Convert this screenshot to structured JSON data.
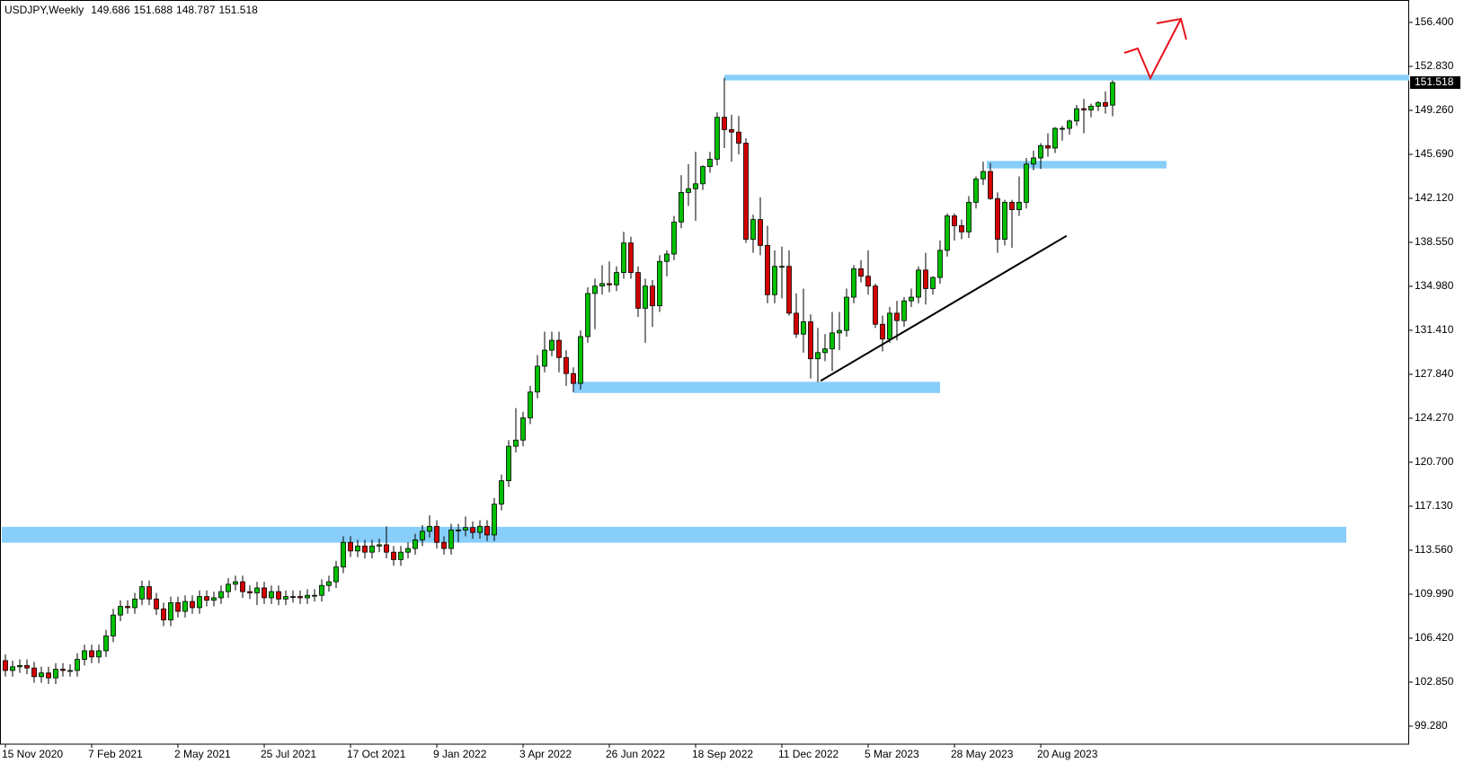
{
  "chart_data": {
    "type": "candlestick",
    "title": "USDJPY,Weekly",
    "up_color": "#00c000",
    "down_color": "#d40000",
    "zone_color": "#87cefa",
    "trend_color": "#000000",
    "categories": [
      "15 Nov 2020",
      null,
      null,
      null,
      null,
      null,
      null,
      null,
      null,
      null,
      null,
      null,
      "7 Feb 2021",
      null,
      null,
      null,
      null,
      null,
      null,
      null,
      null,
      null,
      null,
      null,
      "2 May 2021",
      null,
      null,
      null,
      null,
      null,
      null,
      null,
      null,
      null,
      null,
      null,
      "25 Jul 2021",
      null,
      null,
      null,
      null,
      null,
      null,
      null,
      null,
      null,
      null,
      null,
      "17 Oct 2021",
      null,
      null,
      null,
      null,
      null,
      null,
      null,
      null,
      null,
      null,
      null,
      "9 Jan 2022",
      null,
      null,
      null,
      null,
      null,
      null,
      null,
      null,
      null,
      null,
      null,
      "3 Apr 2022",
      null,
      null,
      null,
      null,
      null,
      null,
      null,
      null,
      null,
      null,
      null,
      "26 Jun 2022",
      null,
      null,
      null,
      null,
      null,
      null,
      null,
      null,
      null,
      null,
      null,
      "18 Sep 2022",
      null,
      null,
      null,
      null,
      null,
      null,
      null,
      null,
      null,
      null,
      null,
      "11 Dec 2022",
      null,
      null,
      null,
      null,
      null,
      null,
      null,
      null,
      null,
      null,
      null,
      "5 Mar 2023",
      null,
      null,
      null,
      null,
      null,
      null,
      null,
      null,
      null,
      null,
      null,
      "28 May 2023",
      null,
      null,
      null,
      null,
      null,
      null,
      null,
      null,
      null,
      null,
      null,
      "20 Aug 2023",
      null,
      null,
      null,
      null,
      null,
      null,
      null,
      null,
      null,
      null
    ],
    "open": [
      104.6,
      103.8,
      104.1,
      104.2,
      104.0,
      103.3,
      103.6,
      103.2,
      103.9,
      103.8,
      103.8,
      104.7,
      105.4,
      104.9,
      105.4,
      106.6,
      108.3,
      109.0,
      108.9,
      109.6,
      110.6,
      109.6,
      108.8,
      107.9,
      109.3,
      108.6,
      109.4,
      108.9,
      109.8,
      109.5,
      109.7,
      110.2,
      110.8,
      111.0,
      110.2,
      110.1,
      110.5,
      109.7,
      110.2,
      109.6,
      109.8,
      109.8,
      109.7,
      109.9,
      109.9,
      110.7,
      111.0,
      112.2,
      114.2,
      113.5,
      113.9,
      113.4,
      113.9,
      114.0,
      113.4,
      112.8,
      113.4,
      113.7,
      114.4,
      115.1,
      115.5,
      114.2,
      113.7,
      115.2,
      115.2,
      115.4,
      115.0,
      115.5,
      114.8,
      117.3,
      119.2,
      122.0,
      122.5,
      124.3,
      126.4,
      128.5,
      129.8,
      130.6,
      129.2,
      127.9,
      127.1,
      130.9,
      134.4,
      135.0,
      135.2,
      135.1,
      136.1,
      138.5,
      136.1,
      133.2,
      135.0,
      133.4,
      137.0,
      137.6,
      140.2,
      142.6,
      142.9,
      143.3,
      144.7,
      145.3,
      148.7,
      147.7,
      147.5,
      146.6,
      138.8,
      140.4,
      138.3,
      134.3,
      136.6,
      136.6,
      132.8,
      131.1,
      132.1,
      129.1,
      129.6,
      129.9,
      131.2,
      131.4,
      134.1,
      136.4,
      135.8,
      135.0,
      131.9,
      130.7,
      132.8,
      132.2,
      133.8,
      134.1,
      136.3,
      134.8,
      135.7,
      137.9,
      140.7,
      139.9,
      139.4,
      141.8,
      143.7,
      144.3,
      142.1,
      138.8,
      141.8,
      141.2,
      141.8,
      144.9,
      145.4,
      146.4,
      146.2,
      147.8,
      147.8,
      148.4,
      149.4,
      149.3,
      149.6,
      149.9,
      149.686
    ],
    "high": [
      105.1,
      104.6,
      104.7,
      104.7,
      104.5,
      104.1,
      104.1,
      104.4,
      104.4,
      104.3,
      105.2,
      105.9,
      105.9,
      105.9,
      107.1,
      108.8,
      109.5,
      109.5,
      110.1,
      111.1,
      111.1,
      110.1,
      109.3,
      109.8,
      109.8,
      109.9,
      109.9,
      110.3,
      110.3,
      110.2,
      110.7,
      111.3,
      111.5,
      111.5,
      110.7,
      111.0,
      111.0,
      110.7,
      110.7,
      110.3,
      110.3,
      110.3,
      110.4,
      110.4,
      111.2,
      111.5,
      112.7,
      114.7,
      114.7,
      114.4,
      114.4,
      114.4,
      114.5,
      115.5,
      113.9,
      113.9,
      114.2,
      114.9,
      115.6,
      116.4,
      116.0,
      114.7,
      115.7,
      115.7,
      116.3,
      115.9,
      116.0,
      116.0,
      117.8,
      119.7,
      122.5,
      125.1,
      124.8,
      126.9,
      129.4,
      131.3,
      131.3,
      131.3,
      129.8,
      128.4,
      131.4,
      134.9,
      135.6,
      136.7,
      137.0,
      136.6,
      139.4,
      139.0,
      136.6,
      135.6,
      135.5,
      137.5,
      137.9,
      140.7,
      144.0,
      144.9,
      145.9,
      144.8,
      145.9,
      149.1,
      151.9,
      148.9,
      148.8,
      147.0,
      140.8,
      142.2,
      139.9,
      137.9,
      138.2,
      137.9,
      134.4,
      134.8,
      132.7,
      131.6,
      131.1,
      132.9,
      132.9,
      134.8,
      136.7,
      137.1,
      137.9,
      135.2,
      132.6,
      133.3,
      133.8,
      134.1,
      134.8,
      136.6,
      137.7,
      135.8,
      138.7,
      140.9,
      140.9,
      140.4,
      142.3,
      143.9,
      145.1,
      145.0,
      142.6,
      142.0,
      142.0,
      143.9,
      145.4,
      146.0,
      146.6,
      147.4,
      147.9,
      148.0,
      148.5,
      149.7,
      150.2,
      149.8,
      150.0,
      150.8,
      151.688
    ],
    "low": [
      103.3,
      103.3,
      103.6,
      103.5,
      102.8,
      102.8,
      102.7,
      102.7,
      103.3,
      103.3,
      103.3,
      104.2,
      104.4,
      104.4,
      104.9,
      106.1,
      107.8,
      108.4,
      108.4,
      109.1,
      109.1,
      108.3,
      107.4,
      107.4,
      108.1,
      108.1,
      108.4,
      108.4,
      109.0,
      109.0,
      109.2,
      109.7,
      110.3,
      109.7,
      109.6,
      109.1,
      109.2,
      109.2,
      109.1,
      109.1,
      109.3,
      109.2,
      109.2,
      109.4,
      109.4,
      110.2,
      110.5,
      111.7,
      113.0,
      113.0,
      112.9,
      112.9,
      113.4,
      112.9,
      112.3,
      112.3,
      112.9,
      113.2,
      113.9,
      114.6,
      113.7,
      113.2,
      113.2,
      114.2,
      114.7,
      114.5,
      114.5,
      114.3,
      114.3,
      116.8,
      118.7,
      121.5,
      122.0,
      123.8,
      125.9,
      128.0,
      129.3,
      128.0,
      126.9,
      126.4,
      126.6,
      130.4,
      131.5,
      134.3,
      134.5,
      134.6,
      135.6,
      135.6,
      132.5,
      130.4,
      131.7,
      132.9,
      135.8,
      137.1,
      139.7,
      141.5,
      140.3,
      142.8,
      144.2,
      144.8,
      146.2,
      145.1,
      145.7,
      138.5,
      137.7,
      137.5,
      133.6,
      133.6,
      134.0,
      132.6,
      130.8,
      129.6,
      127.5,
      127.2,
      128.9,
      128.1,
      129.8,
      130.9,
      133.6,
      135.3,
      134.3,
      131.6,
      129.7,
      130.4,
      130.6,
      131.7,
      133.3,
      133.6,
      133.5,
      134.3,
      135.2,
      137.4,
      138.7,
      138.8,
      138.9,
      141.3,
      143.2,
      142.0,
      137.7,
      138.3,
      138.1,
      140.7,
      141.3,
      144.4,
      144.5,
      145.5,
      145.8,
      146.8,
      147.3,
      148.0,
      147.4,
      148.7,
      149.2,
      149.0,
      148.787
    ],
    "close": [
      103.8,
      104.1,
      104.2,
      104.0,
      103.3,
      103.6,
      103.2,
      103.9,
      103.8,
      103.8,
      104.7,
      105.4,
      104.9,
      105.4,
      106.6,
      108.3,
      109.0,
      108.9,
      109.6,
      110.6,
      109.6,
      108.8,
      107.9,
      109.3,
      108.6,
      109.4,
      108.9,
      109.8,
      109.5,
      109.7,
      110.2,
      110.8,
      111.0,
      110.2,
      110.1,
      110.5,
      109.7,
      110.2,
      109.6,
      109.8,
      109.8,
      109.7,
      109.9,
      109.9,
      110.7,
      111.0,
      112.2,
      114.2,
      113.5,
      113.9,
      113.4,
      113.9,
      114.0,
      113.4,
      112.8,
      113.4,
      113.7,
      114.4,
      115.1,
      115.5,
      114.2,
      113.7,
      115.2,
      115.2,
      115.4,
      115.0,
      115.5,
      114.8,
      117.3,
      119.2,
      122.0,
      122.5,
      124.3,
      126.4,
      128.5,
      129.8,
      130.6,
      129.2,
      127.9,
      127.1,
      130.9,
      134.4,
      135.0,
      135.2,
      135.1,
      136.1,
      138.5,
      136.1,
      133.2,
      135.0,
      133.4,
      137.0,
      137.6,
      140.2,
      142.6,
      142.9,
      143.3,
      144.7,
      145.3,
      148.7,
      147.7,
      147.5,
      146.6,
      138.8,
      140.4,
      138.3,
      134.3,
      136.6,
      136.6,
      132.8,
      131.1,
      132.1,
      129.1,
      129.6,
      129.9,
      131.2,
      131.4,
      134.1,
      136.4,
      135.8,
      135.0,
      131.9,
      130.7,
      132.8,
      132.2,
      133.8,
      134.1,
      136.3,
      134.8,
      135.7,
      137.9,
      140.7,
      139.9,
      139.4,
      141.8,
      143.7,
      144.3,
      142.1,
      138.8,
      141.8,
      141.2,
      141.8,
      144.9,
      145.4,
      146.4,
      146.2,
      147.8,
      147.8,
      148.4,
      149.4,
      149.3,
      149.6,
      149.9,
      149.6,
      151.518
    ],
    "zones": [
      {
        "low": 151.69,
        "high": 152.15,
        "from": 100,
        "to": 196
      },
      {
        "low": 144.55,
        "high": 145.16,
        "from": 136.5,
        "to": 161.5
      },
      {
        "low": 126.32,
        "high": 127.23,
        "from": 79,
        "to": 130
      },
      {
        "low": 114.17,
        "high": 115.46,
        "from": -0.5,
        "to": 186.5
      }
    ],
    "trendline": {
      "x": [
        113.4,
        147.6
      ],
      "y": [
        127.31,
        139.08
      ]
    },
    "ylim": [
      97.82,
      158.22
    ],
    "yticks": [
      {
        "value": 156.4,
        "label": "156.400"
      },
      {
        "value": 152.83,
        "label": "152.830"
      },
      {
        "value": 149.26,
        "label": "149.260"
      },
      {
        "value": 145.69,
        "label": "145.690"
      },
      {
        "value": 142.12,
        "label": "142.120"
      },
      {
        "value": 138.55,
        "label": "138.550"
      },
      {
        "value": 134.98,
        "label": "134.980"
      },
      {
        "value": 131.41,
        "label": "131.410"
      },
      {
        "value": 127.84,
        "label": "127.840"
      },
      {
        "value": 124.27,
        "label": "124.270"
      },
      {
        "value": 120.7,
        "label": "120.700"
      },
      {
        "value": 117.13,
        "label": "117.130"
      },
      {
        "value": 113.56,
        "label": "113.560"
      },
      {
        "value": 109.99,
        "label": "109.990"
      },
      {
        "value": 106.42,
        "label": "106.420"
      },
      {
        "value": 102.85,
        "label": "102.850"
      },
      {
        "value": 99.28,
        "label": "99.280"
      }
    ],
    "grid": false
  }
}
